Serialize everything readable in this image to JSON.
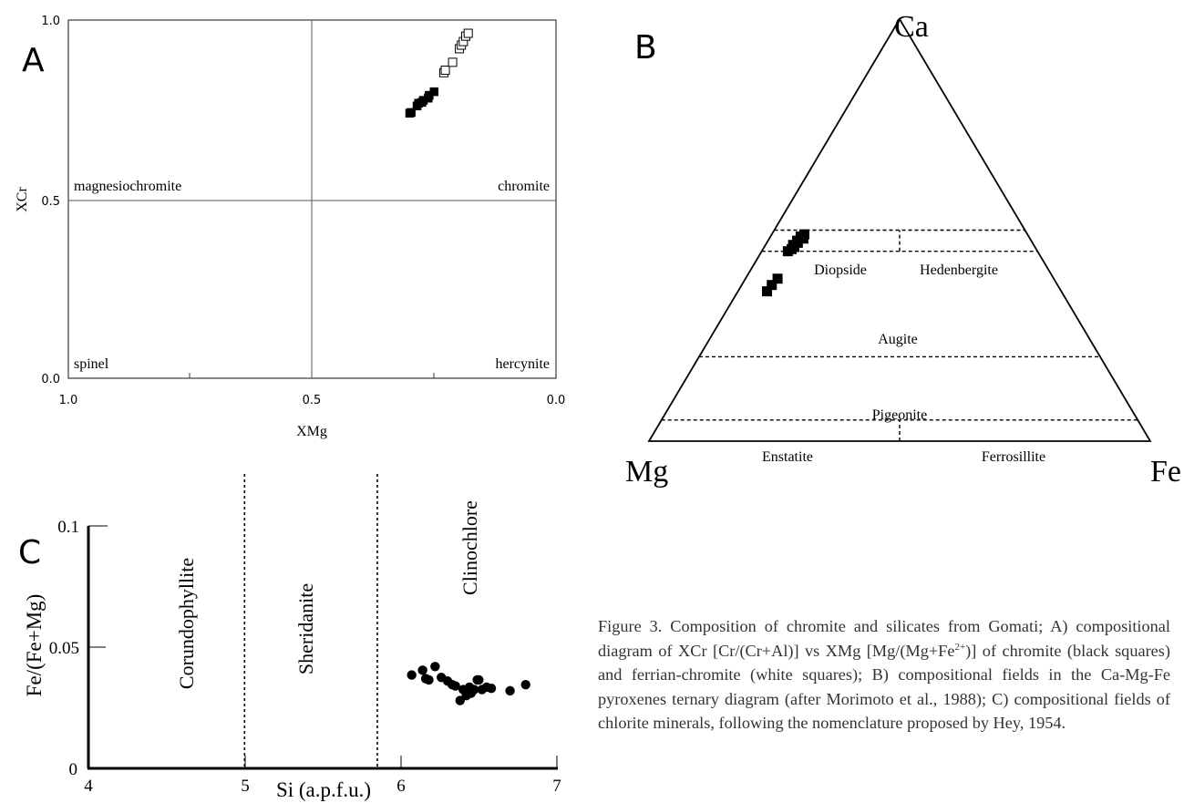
{
  "panels": {
    "a": {
      "letter": "A",
      "chart_data": {
        "type": "scatter",
        "xlabel": "XMg",
        "ylabel": "XCr",
        "xlim": [
          1.0,
          0.0
        ],
        "ylim": [
          0.0,
          1.0
        ],
        "x_reversed": true,
        "xticks": [
          "1.0",
          "0.5",
          "0.0"
        ],
        "yticks": [
          "0.0",
          "0.5",
          "1.0"
        ],
        "divider_lines": [
          0.5
        ],
        "fields": [
          "magnesiochromite",
          "chromite",
          "spinel",
          "hercynite"
        ],
        "series": [
          {
            "marker": "filled-square",
            "color": "#000000",
            "x": [
              0.3,
              0.297,
              0.285,
              0.282,
              0.272,
              0.262,
              0.26,
              0.25,
              0.275
            ],
            "y": [
              0.74,
              0.742,
              0.76,
              0.768,
              0.776,
              0.782,
              0.79,
              0.8,
              0.77
            ]
          },
          {
            "marker": "open-square",
            "color": "#000000",
            "x": [
              0.23,
              0.227,
              0.212,
              0.198,
              0.194,
              0.19,
              0.185,
              0.18
            ],
            "y": [
              0.853,
              0.86,
              0.882,
              0.92,
              0.93,
              0.94,
              0.955,
              0.963
            ]
          }
        ]
      }
    },
    "b": {
      "letter": "B",
      "chart_data": {
        "type": "scatter",
        "ternary": true,
        "vertices": [
          "Ca",
          "Mg",
          "Fe"
        ],
        "divider_ca_levels": [
          0.5,
          0.45,
          0.2,
          0.05
        ],
        "divider_mid_bands": [
          [
            0.45,
            0.5
          ],
          [
            0,
            0.05
          ]
        ],
        "fields": [
          "Diopside",
          "Hedenbergite",
          "Augite",
          "Pigeonite",
          "Enstatite",
          "Ferrosillite"
        ],
        "series": [
          {
            "marker": "filled-square",
            "color": "#000000",
            "ca": [
              0.49,
              0.485,
              0.48,
              0.475,
              0.47,
              0.465,
              0.46,
              0.455,
              0.45,
              0.385,
              0.37,
              0.355
            ],
            "fe": [
              0.065,
              0.06,
              0.068,
              0.058,
              0.062,
              0.055,
              0.06,
              0.057,
              0.052,
              0.064,
              0.06,
              0.058
            ]
          }
        ]
      }
    },
    "c": {
      "letter": "C",
      "chart_data": {
        "type": "scatter",
        "xlabel": "Si (a.p.f.u.)",
        "ylabel": "Fe/(Fe+Mg)",
        "xlim": [
          4,
          7
        ],
        "ylim": [
          0,
          0.1
        ],
        "xticks": [
          "4",
          "5",
          "6",
          "7"
        ],
        "yticks": [
          "0",
          "0.05",
          "0.1"
        ],
        "divider_lines": [
          5,
          5.85
        ],
        "fields": [
          "Corundophyllite",
          "Sheridanite",
          "Clinochlore"
        ],
        "series": [
          {
            "marker": "filled-circle",
            "color": "#000000",
            "x": [
              6.07,
              6.14,
              6.16,
              6.18,
              6.22,
              6.26,
              6.3,
              6.33,
              6.38,
              6.4,
              6.42,
              6.44,
              6.47,
              6.49,
              6.5,
              6.52,
              6.55,
              6.58,
              6.7,
              6.8,
              6.35,
              6.45
            ],
            "y": [
              0.0385,
              0.0405,
              0.037,
              0.0365,
              0.042,
              0.0375,
              0.036,
              0.0345,
              0.028,
              0.0325,
              0.03,
              0.0335,
              0.0325,
              0.0365,
              0.0365,
              0.0325,
              0.0335,
              0.033,
              0.032,
              0.0345,
              0.034,
              0.031
            ]
          }
        ]
      }
    }
  },
  "caption": {
    "lead": "Figure 3. Composition of chromite and silicates from Gomati; A) compositional diagram of XCr [Cr/(Cr+Al)] vs XMg [Mg/(Mg+Fe",
    "sup": "2+",
    "tail": ")] of chromite (black squares) and ferrian-chromite (white squares); B) compositional fields in the Ca-Mg-Fe pyroxenes ternary diagram (after Morimoto et al., 1988); C) compositional fields of chlorite minerals, following the nomenclature proposed by Hey, 1954."
  },
  "colors": {
    "ink": "#000000",
    "caption": "#333333",
    "panel_a_frame": "#3a3a3a"
  }
}
